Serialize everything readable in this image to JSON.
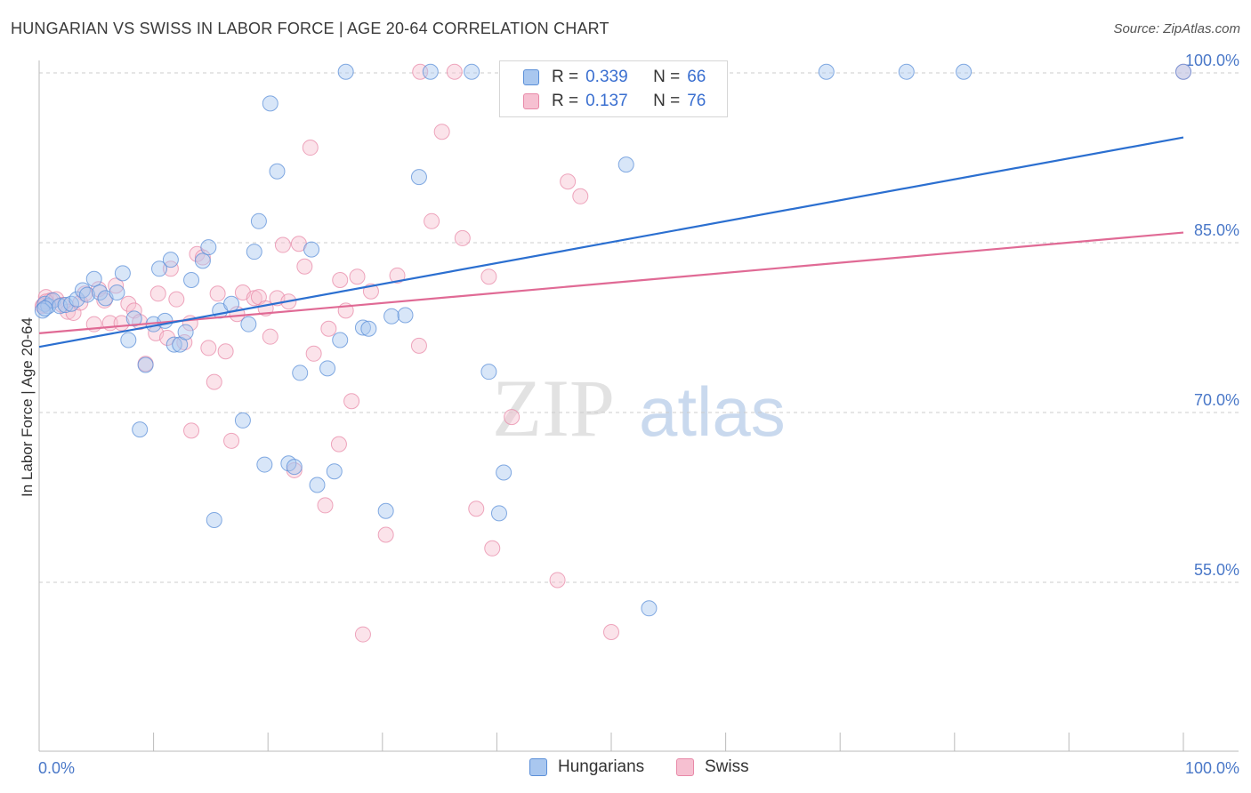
{
  "header": {
    "title": "HUNGARIAN VS SWISS IN LABOR FORCE | AGE 20-64 CORRELATION CHART",
    "source": "Source: ZipAtlas.com"
  },
  "watermark": {
    "zip": "ZIP",
    "atlas": "atlas"
  },
  "legend": {
    "rows": [
      {
        "r_label": "R =",
        "r_value": "0.339",
        "n_label": "N =",
        "n_value": "66",
        "color": "#5b8fd8"
      },
      {
        "r_label": "R =",
        "r_value": "0.137",
        "n_label": "N =",
        "n_value": "76",
        "color": "#e889a8"
      }
    ]
  },
  "colors": {
    "hungarians_fill": "#a9c7ef",
    "hungarians_stroke": "#5b8fd8",
    "hungarians_line": "#2b6fd0",
    "swiss_fill": "#f6c0d1",
    "swiss_stroke": "#e889a8",
    "swiss_line": "#e06a95",
    "grid": "#cccccc",
    "tick_label": "#4a78c8"
  },
  "chart_data": {
    "type": "scatter",
    "title": "HUNGARIAN VS SWISS IN LABOR FORCE | AGE 20-64 CORRELATION CHART",
    "xlabel": "",
    "ylabel": "In Labor Force | Age 20-64",
    "xlim": [
      0,
      100
    ],
    "ylim": [
      40,
      101.5
    ],
    "x_tick_labels": [
      "0.0%",
      "100.0%"
    ],
    "y_ticks": [
      55,
      70,
      85,
      100
    ],
    "y_tick_labels": [
      "55.0%",
      "70.0%",
      "85.0%",
      "100.0%"
    ],
    "grid": true,
    "legend_position": "top-center",
    "series": [
      {
        "name": "Hungarians",
        "trend": {
          "x": [
            0,
            100
          ],
          "y": [
            75.8,
            94.3
          ]
        },
        "points": [
          [
            0.5,
            79.6
          ],
          [
            0.8,
            79.4
          ],
          [
            1.2,
            79.9
          ],
          [
            1.8,
            79.4
          ],
          [
            2.3,
            79.5
          ],
          [
            2.8,
            79.6
          ],
          [
            3.3,
            80.0
          ],
          [
            3.8,
            80.8
          ],
          [
            4.2,
            80.4
          ],
          [
            4.8,
            81.8
          ],
          [
            5.3,
            80.6
          ],
          [
            5.8,
            80.1
          ],
          [
            6.8,
            80.6
          ],
          [
            7.3,
            82.3
          ],
          [
            7.8,
            76.4
          ],
          [
            8.3,
            78.3
          ],
          [
            8.8,
            68.5
          ],
          [
            9.3,
            74.2
          ],
          [
            10.0,
            77.8
          ],
          [
            10.5,
            82.7
          ],
          [
            11.0,
            78.1
          ],
          [
            11.5,
            83.5
          ],
          [
            11.8,
            76.0
          ],
          [
            12.3,
            76.0
          ],
          [
            12.8,
            77.1
          ],
          [
            13.3,
            81.7
          ],
          [
            14.3,
            83.4
          ],
          [
            14.8,
            84.6
          ],
          [
            15.3,
            60.5
          ],
          [
            15.8,
            79.0
          ],
          [
            16.8,
            79.6
          ],
          [
            17.8,
            69.3
          ],
          [
            18.3,
            77.8
          ],
          [
            18.8,
            84.2
          ],
          [
            19.2,
            86.9
          ],
          [
            19.7,
            65.4
          ],
          [
            20.2,
            97.3
          ],
          [
            20.8,
            91.3
          ],
          [
            21.8,
            65.5
          ],
          [
            22.3,
            65.2
          ],
          [
            22.8,
            73.5
          ],
          [
            23.8,
            84.4
          ],
          [
            24.3,
            63.6
          ],
          [
            25.2,
            73.9
          ],
          [
            25.8,
            64.8
          ],
          [
            26.3,
            76.4
          ],
          [
            26.8,
            100.1
          ],
          [
            28.3,
            77.5
          ],
          [
            28.8,
            77.4
          ],
          [
            30.3,
            61.3
          ],
          [
            30.8,
            78.5
          ],
          [
            32.0,
            78.6
          ],
          [
            33.2,
            90.8
          ],
          [
            34.2,
            100.1
          ],
          [
            37.8,
            100.1
          ],
          [
            39.3,
            73.6
          ],
          [
            40.2,
            61.1
          ],
          [
            40.6,
            64.7
          ],
          [
            51.3,
            91.9
          ],
          [
            53.3,
            52.7
          ],
          [
            68.8,
            100.1
          ],
          [
            75.8,
            100.1
          ],
          [
            80.8,
            100.1
          ],
          [
            100.0,
            100.1
          ],
          [
            0.3,
            79.0
          ],
          [
            0.5,
            79.2
          ]
        ]
      },
      {
        "name": "Swiss",
        "trend": {
          "x": [
            0,
            100
          ],
          "y": [
            77.0,
            85.9
          ]
        },
        "points": [
          [
            0.4,
            79.5
          ],
          [
            0.6,
            80.2
          ],
          [
            1.0,
            79.9
          ],
          [
            1.5,
            80.0
          ],
          [
            2.0,
            79.5
          ],
          [
            2.5,
            78.9
          ],
          [
            3.0,
            78.8
          ],
          [
            3.6,
            79.7
          ],
          [
            4.0,
            80.5
          ],
          [
            4.8,
            77.8
          ],
          [
            5.2,
            80.9
          ],
          [
            5.7,
            79.9
          ],
          [
            6.2,
            77.9
          ],
          [
            6.7,
            81.2
          ],
          [
            7.2,
            77.9
          ],
          [
            7.8,
            79.6
          ],
          [
            8.3,
            79.0
          ],
          [
            8.8,
            78.0
          ],
          [
            9.3,
            74.3
          ],
          [
            10.2,
            77.0
          ],
          [
            10.4,
            80.5
          ],
          [
            11.2,
            76.6
          ],
          [
            11.5,
            82.7
          ],
          [
            12.0,
            80.0
          ],
          [
            12.7,
            76.2
          ],
          [
            13.2,
            77.9
          ],
          [
            13.3,
            68.4
          ],
          [
            13.8,
            84.0
          ],
          [
            14.3,
            83.7
          ],
          [
            14.8,
            75.7
          ],
          [
            15.3,
            72.7
          ],
          [
            15.6,
            80.5
          ],
          [
            16.3,
            75.4
          ],
          [
            16.8,
            67.5
          ],
          [
            17.3,
            78.7
          ],
          [
            17.8,
            80.6
          ],
          [
            18.8,
            80.1
          ],
          [
            19.2,
            80.2
          ],
          [
            19.8,
            79.2
          ],
          [
            20.2,
            76.7
          ],
          [
            20.8,
            80.1
          ],
          [
            21.3,
            84.8
          ],
          [
            21.8,
            79.8
          ],
          [
            22.3,
            64.9
          ],
          [
            22.7,
            84.9
          ],
          [
            23.2,
            82.9
          ],
          [
            23.7,
            93.4
          ],
          [
            24.0,
            75.2
          ],
          [
            25.0,
            61.8
          ],
          [
            25.3,
            77.4
          ],
          [
            26.3,
            81.7
          ],
          [
            26.2,
            67.2
          ],
          [
            26.8,
            79.0
          ],
          [
            27.3,
            71.0
          ],
          [
            27.8,
            82.0
          ],
          [
            28.3,
            50.4
          ],
          [
            29.0,
            80.7
          ],
          [
            30.3,
            59.2
          ],
          [
            31.3,
            82.1
          ],
          [
            33.2,
            75.9
          ],
          [
            33.3,
            100.1
          ],
          [
            34.3,
            86.9
          ],
          [
            35.2,
            94.8
          ],
          [
            36.3,
            100.1
          ],
          [
            37.0,
            85.4
          ],
          [
            38.2,
            61.5
          ],
          [
            39.3,
            82.0
          ],
          [
            39.6,
            58.0
          ],
          [
            41.3,
            69.6
          ],
          [
            45.3,
            55.2
          ],
          [
            46.2,
            90.4
          ],
          [
            47.3,
            89.1
          ],
          [
            50.0,
            50.6
          ],
          [
            100.0,
            100.1
          ],
          [
            0.3,
            79.4
          ],
          [
            0.6,
            79.8
          ]
        ]
      }
    ]
  }
}
